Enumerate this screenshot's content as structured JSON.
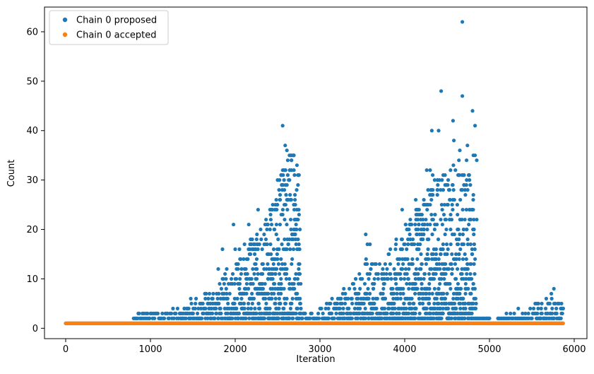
{
  "colors": {
    "proposed": "#1f77b4",
    "accepted": "#ff7f0e",
    "axis": "#000000",
    "legend_border": "#cccccc"
  },
  "chart_data": {
    "type": "scatter",
    "title": "",
    "xlabel": "Iteration",
    "ylabel": "Count",
    "xlim": [
      -250,
      6150
    ],
    "ylim": [
      -2.1,
      65
    ],
    "xticks": [
      0,
      1000,
      2000,
      3000,
      4000,
      5000,
      6000
    ],
    "yticks": [
      0,
      10,
      20,
      30,
      40,
      50,
      60
    ],
    "grid": false,
    "legend": {
      "placement": "top-left",
      "entries": [
        {
          "label": "Chain 0 proposed",
          "color": "#1f77b4"
        },
        {
          "label": "Chain 0 accepted",
          "color": "#ff7f0e"
        }
      ]
    },
    "series": [
      {
        "name": "Chain 0 proposed",
        "color": "#1f77b4",
        "n_iterations": 5870,
        "baseline_value": 1,
        "envelope": [
          [
            0,
            1
          ],
          [
            750,
            1
          ],
          [
            800,
            2
          ],
          [
            850,
            3
          ],
          [
            1000,
            3
          ],
          [
            1100,
            4
          ],
          [
            1300,
            4
          ],
          [
            1500,
            6
          ],
          [
            1700,
            8
          ],
          [
            1850,
            10
          ],
          [
            1950,
            12
          ],
          [
            2100,
            16
          ],
          [
            2250,
            20
          ],
          [
            2400,
            24
          ],
          [
            2500,
            30
          ],
          [
            2600,
            37
          ],
          [
            2700,
            35
          ],
          [
            2760,
            31
          ],
          [
            2780,
            3
          ],
          [
            2850,
            3
          ],
          [
            3000,
            4
          ],
          [
            3200,
            7
          ],
          [
            3400,
            10
          ],
          [
            3550,
            15
          ],
          [
            3700,
            13
          ],
          [
            3900,
            18
          ],
          [
            4050,
            22
          ],
          [
            4200,
            26
          ],
          [
            4350,
            30
          ],
          [
            4500,
            33
          ],
          [
            4600,
            35
          ],
          [
            4700,
            33
          ],
          [
            4800,
            30
          ],
          [
            4830,
            20
          ],
          [
            4850,
            2
          ],
          [
            5000,
            2
          ],
          [
            5050,
            1
          ],
          [
            5100,
            2
          ],
          [
            5300,
            3
          ],
          [
            5500,
            4
          ],
          [
            5700,
            6
          ],
          [
            5870,
            5
          ]
        ],
        "points": [
          [
            2560,
            41
          ],
          [
            2590,
            37
          ],
          [
            2610,
            36
          ],
          [
            2640,
            35
          ],
          [
            2660,
            35
          ],
          [
            2690,
            35
          ],
          [
            2620,
            34
          ],
          [
            2700,
            31
          ],
          [
            2740,
            31
          ],
          [
            2500,
            30
          ],
          [
            2640,
            30
          ],
          [
            2580,
            28
          ],
          [
            2600,
            27
          ],
          [
            2620,
            26
          ],
          [
            2650,
            26
          ],
          [
            2580,
            25
          ],
          [
            2270,
            24
          ],
          [
            2490,
            24
          ],
          [
            2750,
            24
          ],
          [
            2420,
            22
          ],
          [
            1980,
            21
          ],
          [
            2160,
            21
          ],
          [
            2380,
            21
          ],
          [
            2300,
            20
          ],
          [
            2460,
            20
          ],
          [
            2560,
            23
          ],
          [
            2700,
            22
          ],
          [
            2050,
            16
          ],
          [
            2110,
            17
          ],
          [
            1850,
            16
          ],
          [
            2000,
            16
          ],
          [
            1800,
            12
          ],
          [
            1900,
            12
          ],
          [
            4680,
            62
          ],
          [
            4430,
            48
          ],
          [
            4680,
            47
          ],
          [
            4800,
            44
          ],
          [
            4570,
            42
          ],
          [
            4830,
            41
          ],
          [
            4320,
            40
          ],
          [
            4400,
            40
          ],
          [
            4650,
            36
          ],
          [
            4810,
            35
          ],
          [
            4830,
            35
          ],
          [
            4730,
            34
          ],
          [
            4850,
            34
          ],
          [
            4580,
            38
          ],
          [
            4740,
            37
          ],
          [
            4260,
            32
          ],
          [
            4300,
            32
          ],
          [
            4390,
            29
          ],
          [
            4440,
            30
          ],
          [
            4640,
            31
          ],
          [
            4700,
            31
          ],
          [
            4760,
            31
          ],
          [
            4330,
            31
          ],
          [
            4470,
            25
          ],
          [
            4510,
            25
          ],
          [
            4560,
            25
          ],
          [
            4700,
            29
          ],
          [
            4680,
            28
          ],
          [
            4810,
            27
          ],
          [
            4620,
            25
          ],
          [
            4780,
            22
          ],
          [
            4850,
            22
          ],
          [
            4130,
            26
          ],
          [
            4170,
            23
          ],
          [
            3970,
            24
          ],
          [
            4010,
            21
          ],
          [
            4060,
            21
          ],
          [
            4190,
            22
          ],
          [
            3540,
            19
          ],
          [
            3560,
            17
          ],
          [
            3590,
            17
          ],
          [
            3900,
            18
          ],
          [
            4040,
            20
          ],
          [
            4220,
            20
          ],
          [
            4140,
            19
          ],
          [
            5760,
            8
          ],
          [
            5670,
            6
          ],
          [
            5730,
            7
          ],
          [
            5540,
            5
          ],
          [
            5560,
            5
          ],
          [
            5610,
            4
          ],
          [
            5340,
            4
          ],
          [
            5200,
            3
          ],
          [
            5390,
            3
          ],
          [
            5820,
            5
          ],
          [
            5850,
            5
          ],
          [
            5870,
            4
          ],
          [
            5100,
            2
          ],
          [
            4970,
            2
          ],
          [
            5000,
            2
          ]
        ]
      },
      {
        "name": "Chain 0 accepted",
        "color": "#ff7f0e",
        "n_iterations": 5870,
        "values_all": 1
      }
    ]
  }
}
